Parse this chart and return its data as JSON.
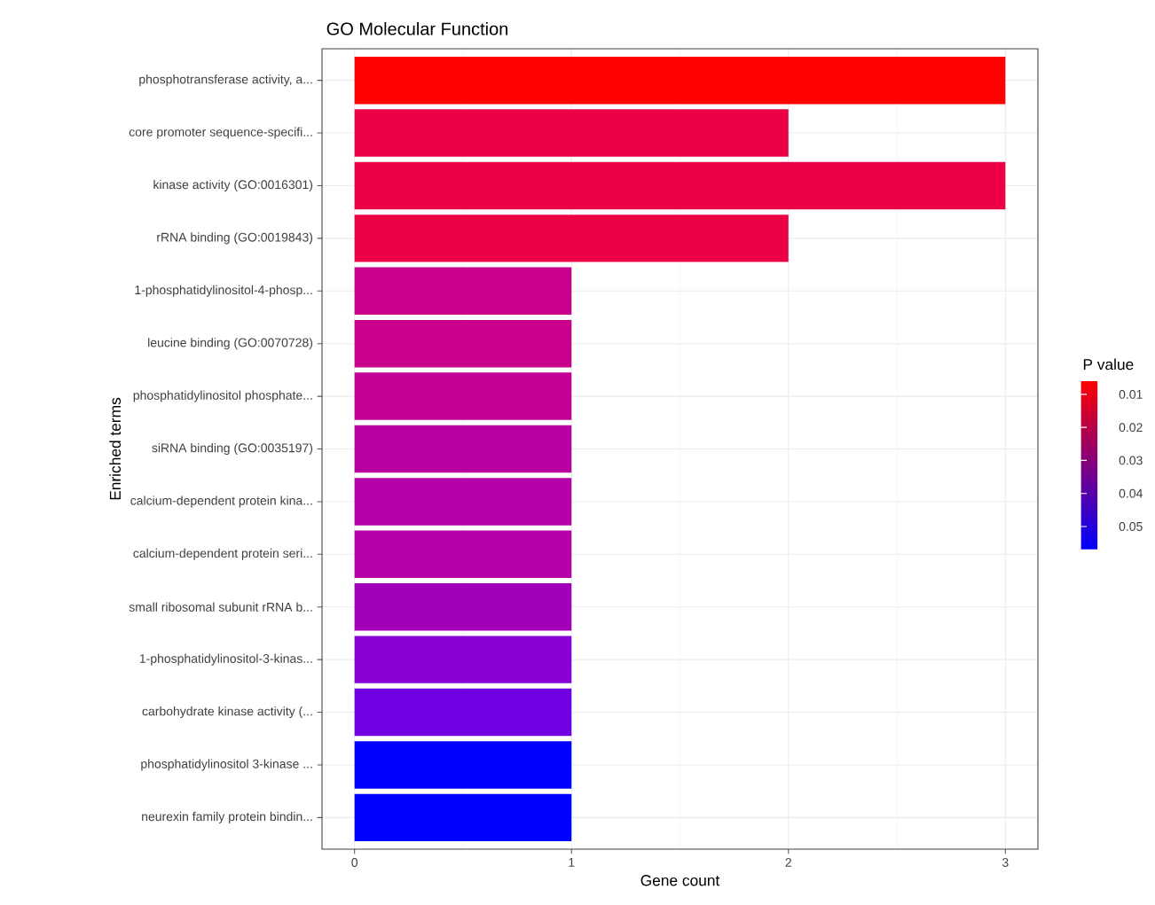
{
  "chart_data": {
    "type": "bar",
    "orientation": "horizontal",
    "title": "GO Molecular Function",
    "xlabel": "Gene count",
    "ylabel": "Enriched terms",
    "clabel": "P value",
    "categories": [
      "phosphotransferase activity, a...",
      "core promoter sequence-specifi...",
      "kinase activity (GO:0016301)",
      "rRNA binding (GO:0019843)",
      "1-phosphatidylinositol-4-phosp...",
      "leucine binding (GO:0070728)",
      "phosphatidylinositol phosphate...",
      "siRNA binding (GO:0035197)",
      "calcium-dependent protein kina...",
      "calcium-dependent protein seri...",
      "small ribosomal subunit rRNA b...",
      "1-phosphatidylinositol-3-kinas...",
      "carbohydrate kinase activity (...",
      "phosphatidylinositol 3-kinase ...",
      "neurexin family protein bindin..."
    ],
    "values": [
      3,
      2,
      3,
      2,
      1,
      1,
      1,
      1,
      1,
      1,
      1,
      1,
      1,
      1,
      1
    ],
    "colors": [
      "#ff0000",
      "#eb0046",
      "#eb0046",
      "#eb0046",
      "#c8008c",
      "#c8008c",
      "#c20094",
      "#b800a0",
      "#b400a6",
      "#b400a6",
      "#a200b8",
      "#8800d6",
      "#7000e2",
      "#0000ff",
      "#0000ff"
    ],
    "xlim": [
      -0.15,
      3.15
    ],
    "xticks": [
      0,
      1,
      2,
      3
    ],
    "grid": true,
    "clim": [
      0.006,
      0.057
    ],
    "cticks": [
      0.01,
      0.02,
      0.03,
      0.04,
      0.05
    ]
  }
}
